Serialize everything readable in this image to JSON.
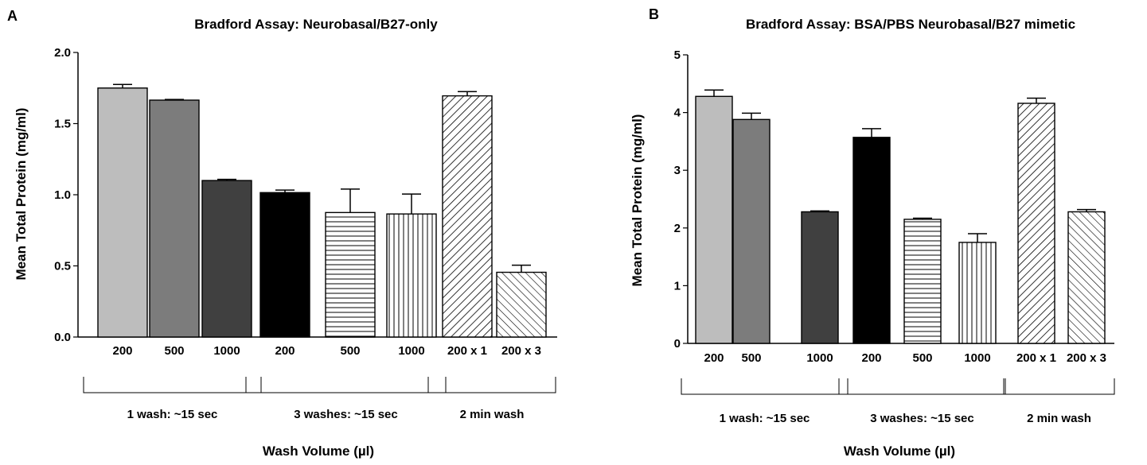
{
  "chart_data": [
    {
      "panel_label": "A",
      "type": "bar",
      "title": "Bradford Assay:  Neurobasal/B27-only",
      "xlabel": "Wash Volume  (µl)",
      "ylabel": "Mean Total Protein (mg/ml)",
      "ylim": [
        0,
        2.0
      ],
      "yticks": [
        "0.0",
        "0.5",
        "1.0",
        "1.5",
        "2.0"
      ],
      "categories": [
        "200",
        "500",
        "1000",
        "200",
        "500",
        "1000",
        "200 x 1",
        "200 x 3"
      ],
      "values": [
        1.75,
        1.665,
        1.1,
        1.015,
        0.875,
        0.865,
        1.695,
        0.455
      ],
      "errors": [
        0.025,
        0.005,
        0.008,
        0.018,
        0.165,
        0.14,
        0.03,
        0.05
      ],
      "patterns": [
        "light-gray",
        "gray",
        "dark-gray",
        "black",
        "horizontal-lines",
        "vertical-lines",
        "diagonal-back",
        "diagonal-forward"
      ],
      "groups": [
        {
          "label": "1 wash: ~15 sec",
          "start": 0,
          "end": 2
        },
        {
          "label": "3 washes: ~15 sec",
          "start": 3,
          "end": 5
        },
        {
          "label": "2 min wash",
          "start": 6,
          "end": 7
        }
      ]
    },
    {
      "panel_label": "B",
      "type": "bar",
      "title": "Bradford Assay:  BSA/PBS Neurobasal/B27 mimetic",
      "xlabel": "Wash Volume  (µl)",
      "ylabel": "Mean Total Protein (mg/ml)",
      "ylim": [
        0,
        5
      ],
      "yticks": [
        "0",
        "1",
        "2",
        "3",
        "4",
        "5"
      ],
      "categories": [
        "200",
        "500",
        "1000",
        "200",
        "500",
        "1000",
        "200 x 1",
        "200 x 3"
      ],
      "values": [
        4.28,
        3.88,
        2.28,
        3.57,
        2.15,
        1.75,
        4.16,
        2.28
      ],
      "errors": [
        0.11,
        0.11,
        0.015,
        0.15,
        0.02,
        0.15,
        0.09,
        0.04
      ],
      "patterns": [
        "light-gray",
        "gray",
        "dark-gray",
        "black",
        "horizontal-lines",
        "vertical-lines",
        "diagonal-back",
        "diagonal-forward"
      ],
      "groups": [
        {
          "label": "1 wash: ~15 sec",
          "start": 0,
          "end": 2
        },
        {
          "label": "3 washes: ~15 sec",
          "start": 3,
          "end": 5
        },
        {
          "label": "2 min wash",
          "start": 6,
          "end": 7
        }
      ]
    }
  ]
}
